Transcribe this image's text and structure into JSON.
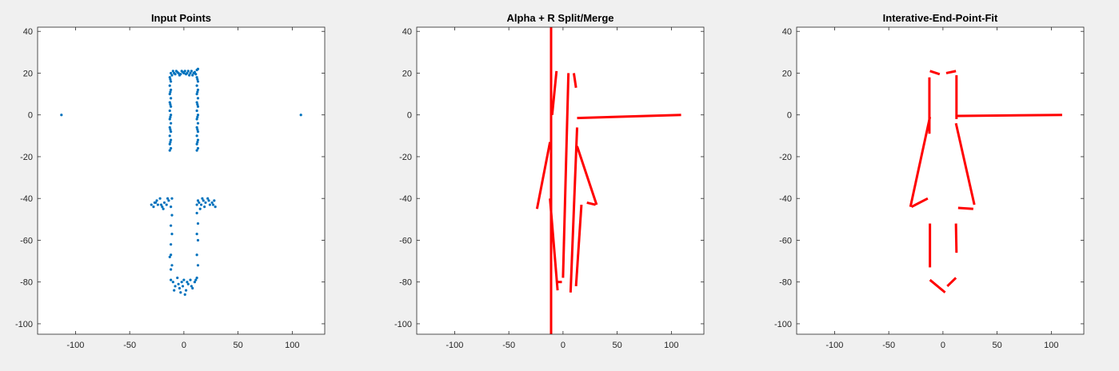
{
  "chart_data": [
    {
      "type": "scatter",
      "title": "Input Points",
      "xlim": [
        -135,
        130
      ],
      "ylim": [
        -105,
        42
      ],
      "xticks": [
        -100,
        -50,
        0,
        50,
        100
      ],
      "yticks": [
        -100,
        -80,
        -60,
        -40,
        -20,
        0,
        20,
        40
      ],
      "xticklabels": [
        "-100",
        "-50",
        "0",
        "50",
        "100"
      ],
      "yticklabels": [
        "-100",
        "-80",
        "-60",
        "-40",
        "-20",
        "0",
        "20",
        "40"
      ],
      "grid": false,
      "color": "#0072bd",
      "points": [
        [
          -113,
          0
        ],
        [
          108,
          0
        ],
        [
          -12,
          20
        ],
        [
          -10,
          21
        ],
        [
          -8,
          19.5
        ],
        [
          -6,
          20.5
        ],
        [
          -4,
          19
        ],
        [
          -2,
          21
        ],
        [
          0,
          20
        ],
        [
          2,
          19.5
        ],
        [
          4,
          21
        ],
        [
          6,
          20
        ],
        [
          8,
          19
        ],
        [
          10,
          20.5
        ],
        [
          12,
          21.5
        ],
        [
          13,
          22
        ],
        [
          -11,
          19
        ],
        [
          -9,
          20
        ],
        [
          -7,
          21
        ],
        [
          -5,
          20
        ],
        [
          -3,
          19.5
        ],
        [
          -1,
          20.5
        ],
        [
          1,
          21
        ],
        [
          3,
          20
        ],
        [
          5,
          19
        ],
        [
          7,
          21
        ],
        [
          9,
          20
        ],
        [
          11,
          19.5
        ],
        [
          -13,
          18
        ],
        [
          -12,
          16
        ],
        [
          -13,
          14
        ],
        [
          -12,
          12
        ],
        [
          -13,
          10
        ],
        [
          -12,
          8
        ],
        [
          -13,
          6
        ],
        [
          -12,
          4
        ],
        [
          -13,
          2
        ],
        [
          -12,
          0
        ],
        [
          -13,
          -2
        ],
        [
          -12,
          -4
        ],
        [
          -13,
          -6
        ],
        [
          -12,
          -8
        ],
        [
          -13,
          -10
        ],
        [
          -12,
          -12
        ],
        [
          -13,
          -14
        ],
        [
          -12,
          -16
        ],
        [
          -13,
          -17
        ],
        [
          -12.5,
          17
        ],
        [
          -12.5,
          11
        ],
        [
          -12.5,
          5
        ],
        [
          -12.5,
          -1
        ],
        [
          -12.5,
          -7
        ],
        [
          -12.5,
          -13
        ],
        [
          12,
          18
        ],
        [
          13,
          16
        ],
        [
          12,
          14
        ],
        [
          13,
          12
        ],
        [
          12,
          10
        ],
        [
          13,
          8
        ],
        [
          12,
          6
        ],
        [
          13,
          4
        ],
        [
          12,
          2
        ],
        [
          13,
          0
        ],
        [
          12,
          -2
        ],
        [
          13,
          -4
        ],
        [
          12,
          -6
        ],
        [
          13,
          -8
        ],
        [
          12,
          -10
        ],
        [
          13,
          -12
        ],
        [
          12,
          -14
        ],
        [
          13,
          -16
        ],
        [
          12,
          -17
        ],
        [
          12.5,
          17
        ],
        [
          12.5,
          11
        ],
        [
          12.5,
          5
        ],
        [
          12.5,
          -1
        ],
        [
          12.5,
          -7
        ],
        [
          12.5,
          -13
        ],
        [
          -30,
          -43
        ],
        [
          -28,
          -44
        ],
        [
          -26,
          -42
        ],
        [
          -24,
          -43
        ],
        [
          -22,
          -40
        ],
        [
          -20,
          -44
        ],
        [
          -18,
          -42
        ],
        [
          -16,
          -43
        ],
        [
          -14,
          -41
        ],
        [
          -12,
          -44
        ],
        [
          -25,
          -41
        ],
        [
          -19,
          -45
        ],
        [
          -15,
          -40
        ],
        [
          -11,
          -40
        ],
        [
          -27,
          -42
        ],
        [
          -21,
          -43
        ],
        [
          12,
          -43
        ],
        [
          14,
          -42
        ],
        [
          16,
          -43
        ],
        [
          18,
          -41
        ],
        [
          20,
          -42
        ],
        [
          22,
          -40
        ],
        [
          24,
          -43
        ],
        [
          26,
          -42
        ],
        [
          28,
          -41
        ],
        [
          29,
          -44
        ],
        [
          15,
          -45
        ],
        [
          19,
          -44
        ],
        [
          23,
          -41
        ],
        [
          27,
          -43
        ],
        [
          17,
          -40
        ],
        [
          13,
          -41
        ],
        [
          -11,
          -48
        ],
        [
          -12,
          -53
        ],
        [
          -11,
          -57
        ],
        [
          -12,
          -62
        ],
        [
          12,
          -47
        ],
        [
          13,
          -52
        ],
        [
          12,
          -57
        ],
        [
          13,
          -60
        ],
        [
          -12,
          -67
        ],
        [
          -13,
          -68
        ],
        [
          -11,
          -72
        ],
        [
          -12,
          -74
        ],
        [
          12,
          -67
        ],
        [
          13,
          -72
        ],
        [
          -12,
          -79
        ],
        [
          -10,
          -80
        ],
        [
          -8,
          -82
        ],
        [
          -6,
          -78
        ],
        [
          -4,
          -83
        ],
        [
          -2,
          -80
        ],
        [
          0,
          -79
        ],
        [
          2,
          -84
        ],
        [
          4,
          -81
        ],
        [
          6,
          -79
        ],
        [
          8,
          -83
        ],
        [
          10,
          -80
        ],
        [
          12,
          -78
        ],
        [
          -9,
          -84
        ],
        [
          -5,
          -81
        ],
        [
          -1,
          -82
        ],
        [
          1,
          -86
        ],
        [
          3,
          -80
        ],
        [
          7,
          -82
        ],
        [
          11,
          -79
        ],
        [
          -3,
          -85
        ]
      ]
    },
    {
      "type": "line",
      "title": "Alpha + R Split/Merge",
      "xlim": [
        -135,
        130
      ],
      "ylim": [
        -105,
        42
      ],
      "xticks": [
        -100,
        -50,
        0,
        50,
        100
      ],
      "yticks": [
        -100,
        -80,
        -60,
        -40,
        -20,
        0,
        20,
        40
      ],
      "xticklabels": [
        "-100",
        "-50",
        "0",
        "50",
        "100"
      ],
      "yticklabels": [
        "-100",
        "-80",
        "-60",
        "-40",
        "-20",
        "0",
        "20",
        "40"
      ],
      "grid": false,
      "color": "#ff0000",
      "segments": [
        [
          [
            -11,
            -105
          ],
          [
            -11,
            42
          ]
        ],
        [
          [
            -10,
            0
          ],
          [
            -6,
            21
          ]
        ],
        [
          [
            12,
            13
          ],
          [
            10,
            20
          ]
        ],
        [
          [
            13,
            -1.5
          ],
          [
            109,
            0
          ]
        ],
        [
          [
            -24,
            -45
          ],
          [
            -12,
            -13
          ]
        ],
        [
          [
            -12,
            -40
          ],
          [
            -5,
            -84
          ]
        ],
        [
          [
            -6,
            -80
          ],
          [
            -1,
            -80
          ]
        ],
        [
          [
            0,
            -78
          ],
          [
            5,
            20
          ]
        ],
        [
          [
            7,
            -85
          ],
          [
            13,
            -6
          ]
        ],
        [
          [
            13,
            -15
          ],
          [
            31,
            -43
          ]
        ],
        [
          [
            22,
            -42
          ],
          [
            30,
            -43
          ]
        ],
        [
          [
            12,
            -82
          ],
          [
            17,
            -43
          ]
        ]
      ]
    },
    {
      "type": "line",
      "title": "Interative-End-Point-Fit",
      "xlim": [
        -135,
        130
      ],
      "ylim": [
        -105,
        42
      ],
      "xticks": [
        -100,
        -50,
        0,
        50,
        100
      ],
      "yticks": [
        -100,
        -80,
        -60,
        -40,
        -20,
        0,
        20,
        40
      ],
      "xticklabels": [
        "-100",
        "-50",
        "0",
        "50",
        "100"
      ],
      "yticklabels": [
        "-100",
        "-80",
        "-60",
        "-40",
        "-20",
        "0",
        "20",
        "40"
      ],
      "grid": false,
      "color": "#ff0000",
      "segments": [
        [
          [
            -12,
            21
          ],
          [
            -3,
            19.5
          ]
        ],
        [
          [
            3,
            20
          ],
          [
            12,
            21
          ]
        ],
        [
          [
            -12.5,
            18
          ],
          [
            -12.5,
            -9
          ]
        ],
        [
          [
            12.5,
            19
          ],
          [
            12.5,
            -2
          ]
        ],
        [
          [
            13,
            -0.5
          ],
          [
            110,
            0
          ]
        ],
        [
          [
            -12,
            -1
          ],
          [
            -30,
            -44
          ]
        ],
        [
          [
            12,
            -4
          ],
          [
            29,
            -43
          ]
        ],
        [
          [
            -29,
            -44
          ],
          [
            -14,
            -40
          ]
        ],
        [
          [
            14,
            -44.5
          ],
          [
            28,
            -45
          ]
        ],
        [
          [
            -12,
            -52
          ],
          [
            -12,
            -73
          ]
        ],
        [
          [
            12,
            -52
          ],
          [
            12.5,
            -66
          ]
        ],
        [
          [
            -12,
            -79
          ],
          [
            2,
            -85
          ]
        ],
        [
          [
            4,
            -82
          ],
          [
            12,
            -78
          ]
        ]
      ]
    }
  ]
}
